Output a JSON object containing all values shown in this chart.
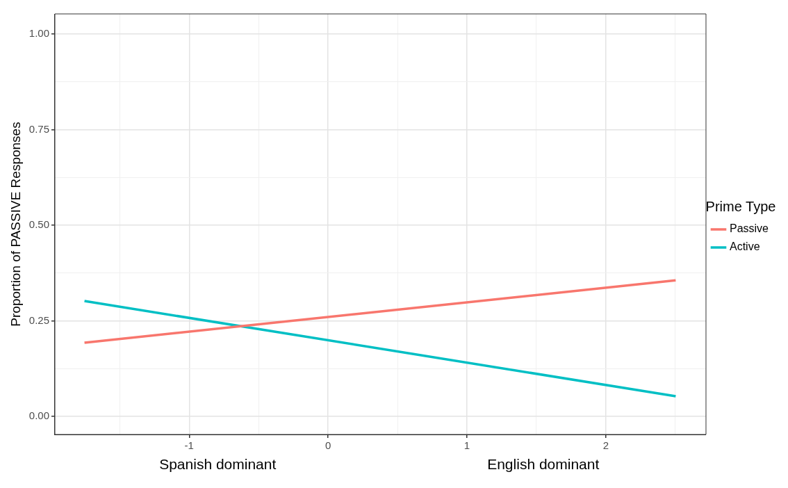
{
  "chart_data": {
    "type": "line",
    "ylabel": "Proportion of PASSIVE Responses",
    "legend_title": "Prime Type",
    "series": [
      {
        "name": "Passive",
        "color": "#f8766d",
        "values": [
          0.193,
          0.356
        ]
      },
      {
        "name": "Active",
        "color": "#00bfc4",
        "values": [
          0.302,
          0.053
        ]
      }
    ],
    "x": [
      -1.754,
      2.503
    ],
    "xlim": [
      -1.967,
      2.721
    ],
    "ylim": [
      -0.047,
      1.053
    ],
    "xticks": [
      {
        "value": -1.5,
        "label": null
      },
      -1,
      {
        "value": -0.5,
        "label": null
      },
      0,
      {
        "value": 0.5,
        "label": null
      },
      1,
      {
        "value": 1.5,
        "label": null
      },
      2,
      {
        "value": 2.5,
        "label": null
      }
    ],
    "yticks": [
      {
        "value": 0,
        "label": "0.00"
      },
      {
        "value": 0.125,
        "label": null
      },
      {
        "value": 0.25,
        "label": "0.25"
      },
      {
        "value": 0.375,
        "label": null
      },
      {
        "value": 0.5,
        "label": "0.50"
      },
      {
        "value": 0.625,
        "label": null
      },
      {
        "value": 0.75,
        "label": "0.75"
      },
      {
        "value": 0.875,
        "label": null
      },
      {
        "value": 1,
        "label": "1.00"
      }
    ],
    "annotations": [
      "Spanish dominant",
      "English dominant"
    ],
    "grid": true,
    "legend": "right",
    "marker": "none",
    "line_style": "solid"
  }
}
